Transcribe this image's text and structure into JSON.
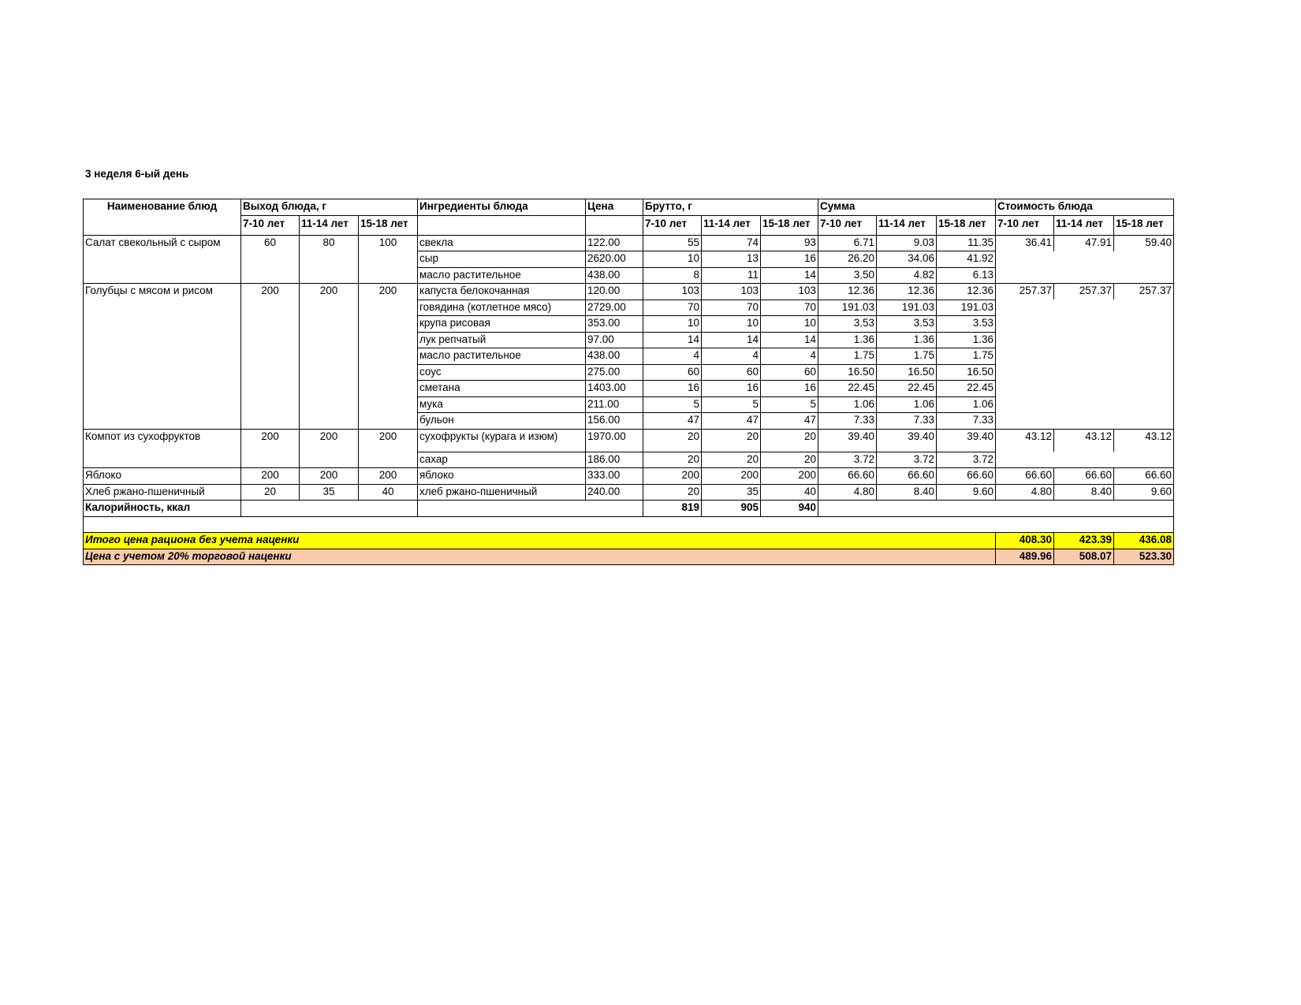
{
  "title": "3 неделя 6-ый день",
  "headers": {
    "dish_name": "Наименование блюд",
    "output": "Выход блюда, г",
    "ingredients": "Ингредиенты блюда",
    "price": "Цена",
    "brutto": "Брутто, г",
    "sum": "Сумма",
    "dish_cost": "Стоимость блюда",
    "ages": [
      "7-10 лет",
      "11-14 лет",
      "15-18 лет"
    ]
  },
  "dishes": [
    {
      "name": "Салат свекольный с сыром",
      "output": [
        "60",
        "80",
        "100"
      ],
      "cost": [
        "36.41",
        "47.91",
        "59.40"
      ],
      "ingredients": [
        {
          "name": "свекла",
          "price": "122.00",
          "brutto": [
            "55",
            "74",
            "93"
          ],
          "sum": [
            "6.71",
            "9.03",
            "11.35"
          ]
        },
        {
          "name": "сыр",
          "price": "2620.00",
          "brutto": [
            "10",
            "13",
            "16"
          ],
          "sum": [
            "26.20",
            "34.06",
            "41.92"
          ]
        },
        {
          "name": "масло растительное",
          "price": "438.00",
          "brutto": [
            "8",
            "11",
            "14"
          ],
          "sum": [
            "3.50",
            "4.82",
            "6.13"
          ]
        }
      ]
    },
    {
      "name": "Голубцы с мясом и рисом",
      "output": [
        "200",
        "200",
        "200"
      ],
      "cost": [
        "257.37",
        "257.37",
        "257.37"
      ],
      "ingredients": [
        {
          "name": "капуста белокочанная",
          "price": "120.00",
          "brutto": [
            "103",
            "103",
            "103"
          ],
          "sum": [
            "12.36",
            "12.36",
            "12.36"
          ]
        },
        {
          "name": "говядина (котлетное мясо)",
          "price": "2729.00",
          "brutto": [
            "70",
            "70",
            "70"
          ],
          "sum": [
            "191.03",
            "191.03",
            "191.03"
          ]
        },
        {
          "name": "крупа рисовая",
          "price": "353.00",
          "brutto": [
            "10",
            "10",
            "10"
          ],
          "sum": [
            "3.53",
            "3.53",
            "3.53"
          ]
        },
        {
          "name": "лук репчатый",
          "price": "97.00",
          "brutto": [
            "14",
            "14",
            "14"
          ],
          "sum": [
            "1.36",
            "1.36",
            "1.36"
          ]
        },
        {
          "name": "масло растительное",
          "price": "438.00",
          "brutto": [
            "4",
            "4",
            "4"
          ],
          "sum": [
            "1.75",
            "1.75",
            "1.75"
          ]
        },
        {
          "name": "соус",
          "price": "275.00",
          "brutto": [
            "60",
            "60",
            "60"
          ],
          "sum": [
            "16.50",
            "16.50",
            "16.50"
          ]
        },
        {
          "name": "сметана",
          "price": "1403.00",
          "brutto": [
            "16",
            "16",
            "16"
          ],
          "sum": [
            "22.45",
            "22.45",
            "22.45"
          ]
        },
        {
          "name": "мука",
          "price": "211.00",
          "brutto": [
            "5",
            "5",
            "5"
          ],
          "sum": [
            "1.06",
            "1.06",
            "1.06"
          ]
        },
        {
          "name": "бульон",
          "price": "156.00",
          "brutto": [
            "47",
            "47",
            "47"
          ],
          "sum": [
            "7.33",
            "7.33",
            "7.33"
          ]
        }
      ]
    },
    {
      "name": "Компот из сухофруктов",
      "output": [
        "200",
        "200",
        "200"
      ],
      "cost": [
        "43.12",
        "43.12",
        "43.12"
      ],
      "tall_first": true,
      "ingredients": [
        {
          "name": "сухофрукты (курага и изюм)",
          "price": "1970.00",
          "brutto": [
            "20",
            "20",
            "20"
          ],
          "sum": [
            "39.40",
            "39.40",
            "39.40"
          ]
        },
        {
          "name": "сахар",
          "price": "186.00",
          "brutto": [
            "20",
            "20",
            "20"
          ],
          "sum": [
            "3.72",
            "3.72",
            "3.72"
          ]
        }
      ]
    },
    {
      "name": "Яблоко",
      "output": [
        "200",
        "200",
        "200"
      ],
      "cost": [
        "66.60",
        "66.60",
        "66.60"
      ],
      "ingredients": [
        {
          "name": "яблоко",
          "price": "333.00",
          "brutto": [
            "200",
            "200",
            "200"
          ],
          "sum": [
            "66.60",
            "66.60",
            "66.60"
          ]
        }
      ]
    },
    {
      "name": "Хлеб ржано-пшеничный",
      "output": [
        "20",
        "35",
        "40"
      ],
      "cost": [
        "4.80",
        "8.40",
        "9.60"
      ],
      "ingredients": [
        {
          "name": "хлеб ржано-пшеничный",
          "price": "240.00",
          "brutto": [
            "20",
            "35",
            "40"
          ],
          "sum": [
            "4.80",
            "8.40",
            "9.60"
          ]
        }
      ]
    }
  ],
  "calories": {
    "label": "Калорийность, ккал",
    "values": [
      "819",
      "905",
      "940"
    ]
  },
  "total": {
    "label": "Итого цена рациона без учета наценки",
    "values": [
      "408.30",
      "423.39",
      "436.08"
    ],
    "color": "#FFFF00"
  },
  "total_markup": {
    "label": "Цена с учетом 20% торговой наценки",
    "values": [
      "489.96",
      "508.07",
      "523.30"
    ],
    "color": "#F8CBAD"
  }
}
